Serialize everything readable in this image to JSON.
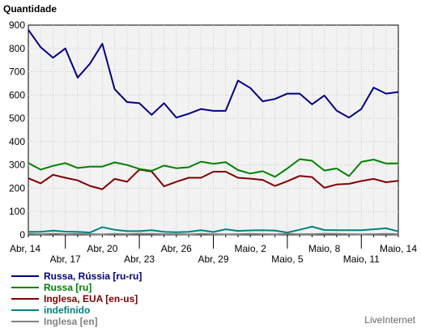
{
  "chart_data": {
    "type": "line",
    "ylabel": "Quantidade",
    "ylim": [
      0,
      900
    ],
    "yticks": [
      0,
      100,
      200,
      300,
      400,
      500,
      600,
      700,
      800,
      900
    ],
    "grid": true,
    "legend_placement": "bottom",
    "x": [
      "Abr, 14",
      "Abr, 15",
      "Abr, 16",
      "Abr, 17",
      "Abr, 18",
      "Abr, 19",
      "Abr, 20",
      "Abr, 21",
      "Abr, 22",
      "Abr, 23",
      "Abr, 24",
      "Abr, 25",
      "Abr, 26",
      "Abr, 27",
      "Abr, 28",
      "Abr, 29",
      "Abr, 30",
      "Maio, 1",
      "Maio, 2",
      "Maio, 3",
      "Maio, 4",
      "Maio, 5",
      "Maio, 6",
      "Maio, 7",
      "Maio, 8",
      "Maio, 9",
      "Maio, 10",
      "Maio, 11",
      "Maio, 12",
      "Maio, 13",
      "Maio, 14"
    ],
    "xtick_labels": [
      {
        "i": 0,
        "label": "Abr, 14",
        "row": 1
      },
      {
        "i": 3,
        "label": "Abr, 17",
        "row": 2
      },
      {
        "i": 6,
        "label": "Abr, 20",
        "row": 1
      },
      {
        "i": 9,
        "label": "Abr, 23",
        "row": 2
      },
      {
        "i": 12,
        "label": "Abr, 26",
        "row": 1
      },
      {
        "i": 15,
        "label": "Abr, 29",
        "row": 2
      },
      {
        "i": 18,
        "label": "Maio, 2",
        "row": 1
      },
      {
        "i": 21,
        "label": "Maio, 5",
        "row": 2
      },
      {
        "i": 24,
        "label": "Maio, 8",
        "row": 1
      },
      {
        "i": 27,
        "label": "Maio, 11",
        "row": 2
      },
      {
        "i": 30,
        "label": "Maio, 14",
        "row": 1
      }
    ],
    "series": [
      {
        "name": "Russa, Rússia [ru-ru]",
        "color": "#000080",
        "values": [
          880,
          805,
          760,
          800,
          675,
          735,
          820,
          625,
          570,
          565,
          515,
          565,
          503,
          520,
          540,
          532,
          532,
          662,
          630,
          573,
          583,
          606,
          606,
          560,
          598,
          533,
          503,
          540,
          632,
          606,
          613
        ]
      },
      {
        "name": "Russa [ru]",
        "color": "#008000",
        "values": [
          308,
          280,
          296,
          308,
          287,
          293,
          293,
          311,
          300,
          283,
          275,
          297,
          286,
          290,
          314,
          305,
          312,
          278,
          263,
          273,
          249,
          285,
          325,
          318,
          276,
          285,
          252,
          313,
          323,
          306,
          307
        ]
      },
      {
        "name": "Inglesa, EUA [en-us]",
        "color": "#800000",
        "values": [
          243,
          221,
          258,
          245,
          234,
          210,
          196,
          240,
          228,
          280,
          272,
          208,
          228,
          245,
          245,
          271,
          271,
          245,
          241,
          236,
          210,
          230,
          253,
          248,
          202,
          216,
          219,
          231,
          240,
          226,
          232
        ]
      },
      {
        "name": "indefinido",
        "color": "#008080",
        "values": [
          13,
          13,
          18,
          14,
          13,
          10,
          33,
          22,
          16,
          16,
          20,
          13,
          11,
          13,
          20,
          12,
          24,
          17,
          19,
          20,
          18,
          10,
          22,
          35,
          21,
          20,
          20,
          20,
          24,
          28,
          15
        ]
      },
      {
        "name": "Inglesa [en]",
        "color": "#808080",
        "values": [
          4,
          3,
          5,
          3,
          4,
          3,
          2,
          4,
          3,
          5,
          4,
          3,
          3,
          2,
          4,
          3,
          2,
          3,
          4,
          3,
          2,
          4,
          3,
          3,
          5,
          4,
          3,
          2,
          3,
          4,
          3
        ]
      }
    ]
  },
  "branding": "LiveInternet"
}
